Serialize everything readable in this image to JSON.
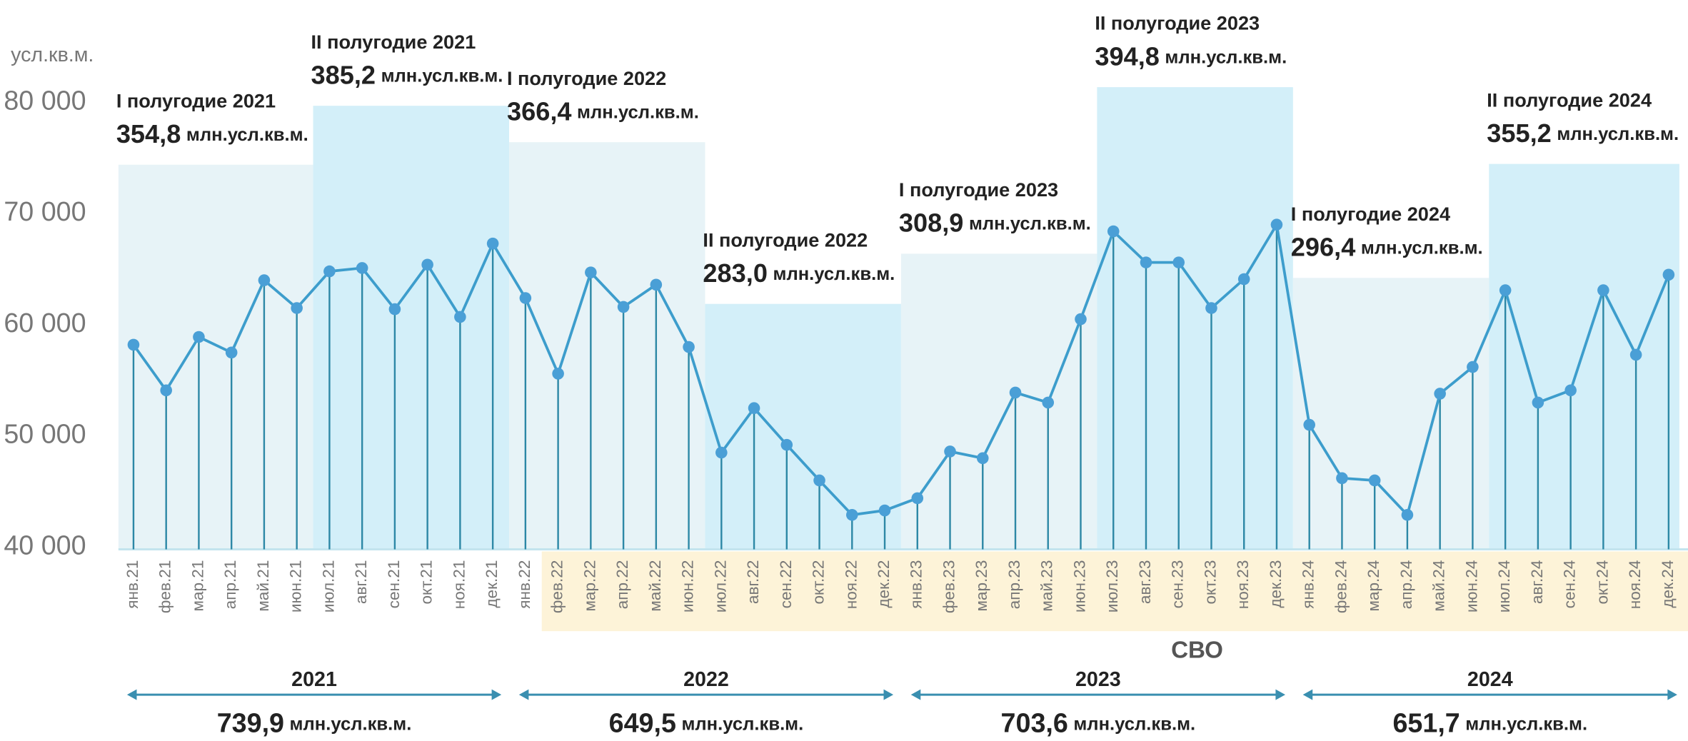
{
  "chart_data": {
    "type": "line",
    "y_label": "усл.кв.м.",
    "unit": "млн.усл.кв.м.",
    "categories": [
      "янв.21",
      "фев.21",
      "мар.21",
      "апр.21",
      "май.21",
      "июн.21",
      "июл.21",
      "авг.21",
      "сен.21",
      "окт.21",
      "ноя.21",
      "дек.21",
      "янв.22",
      "фев.22",
      "мар.22",
      "апр.22",
      "май.22",
      "июн.22",
      "июл.22",
      "авг.22",
      "сен.22",
      "окт.22",
      "ноя.22",
      "дек.22",
      "янв.23",
      "фев.23",
      "мар.23",
      "апр.23",
      "май.23",
      "июн.23",
      "июл.23",
      "авг.23",
      "сен.23",
      "окт.23",
      "ноя.23",
      "дек.23",
      "янв.24",
      "фев.24",
      "мар.24",
      "апр.24",
      "май.24",
      "июн.24",
      "июл.24",
      "авг.24",
      "сен.24",
      "окт.24",
      "ноя.24",
      "дек.24"
    ],
    "values": [
      58200,
      54100,
      58900,
      57500,
      64000,
      61500,
      64800,
      65100,
      61400,
      65400,
      60700,
      67300,
      62400,
      55600,
      64700,
      61600,
      63600,
      58000,
      48500,
      52500,
      49200,
      46000,
      42900,
      43300,
      44400,
      48600,
      48000,
      53900,
      53000,
      60500,
      68400,
      65600,
      65600,
      61500,
      64100,
      69000,
      51000,
      46200,
      46000,
      42900,
      53800,
      56200,
      63100,
      53000,
      54100,
      63100,
      57300,
      64500
    ],
    "color": "#3d9dcc",
    "ylim": [
      40000,
      80000
    ],
    "yticks": [
      {
        "value": 40000,
        "label": "40 000"
      },
      {
        "value": 50000,
        "label": "50 000"
      },
      {
        "value": 60000,
        "label": "60 000"
      },
      {
        "value": 70000,
        "label": "70 000"
      },
      {
        "value": 80000,
        "label": "80 000"
      }
    ],
    "halves": {
      "labels": [
        "I полугодие 2021",
        "II полугодие 2021",
        "I полугодие 2022",
        "II полугодие 2022",
        "I полугодие 2023",
        "II полугодие 2023",
        "I полугодие 2024",
        "II полугодие 2024"
      ],
      "values": [
        354.8,
        385.2,
        366.4,
        283.0,
        308.9,
        394.8,
        296.4,
        355.2
      ],
      "value_labels": [
        "354,8",
        "385,2",
        "366,4",
        "283,0",
        "308,9",
        "394,8",
        "296,4",
        "355,2"
      ]
    },
    "years": {
      "labels": [
        "2021",
        "2022",
        "2023",
        "2024"
      ],
      "values": [
        739.9,
        649.5,
        703.6,
        651.7
      ],
      "value_labels": [
        "739,9",
        "649,5",
        "703,6",
        "651,7"
      ]
    },
    "svo": {
      "label": "СВО",
      "start": "фев.22"
    }
  }
}
